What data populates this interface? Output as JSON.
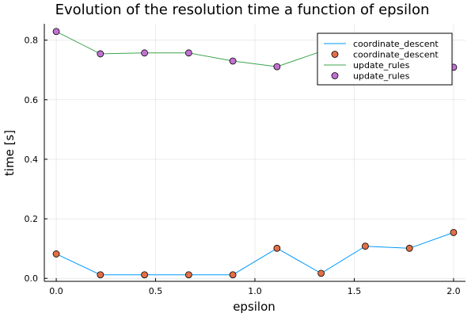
{
  "chart_data": {
    "type": "scatter",
    "title": "Evolution of the resolution time a function of epsilon",
    "xlabel": "epsilon",
    "ylabel": "time [s]",
    "xlim": [
      -0.06,
      2.06
    ],
    "ylim": [
      -0.01,
      0.855
    ],
    "xticks": [
      0.0,
      0.5,
      1.0,
      1.5,
      2.0
    ],
    "xtick_labels": [
      "0.0",
      "0.5",
      "1.0",
      "1.5",
      "2.0"
    ],
    "yticks": [
      0.0,
      0.2,
      0.4,
      0.6,
      0.8
    ],
    "ytick_labels": [
      "0.0",
      "0.2",
      "0.4",
      "0.6",
      "0.8"
    ],
    "grid": true,
    "legend_position": "top-right",
    "x": [
      0.0,
      0.2222,
      0.4444,
      0.6667,
      0.8889,
      1.1111,
      1.3333,
      1.5556,
      1.7778,
      2.0
    ],
    "series": [
      {
        "name": "coordinate_descent",
        "line_color": "#009AFA",
        "marker_color": "#E26F46",
        "values": [
          0.082,
          0.012,
          0.012,
          0.012,
          0.012,
          0.101,
          0.017,
          0.108,
          0.101,
          0.154
        ]
      },
      {
        "name": "update_rules",
        "line_color": "#3EA44E",
        "marker_color": "#C271D2",
        "values": [
          0.829,
          0.754,
          0.757,
          0.757,
          0.73,
          0.711,
          0.762,
          0.748,
          0.728,
          0.709
        ]
      }
    ],
    "legend_entries": [
      {
        "label": "coordinate_descent",
        "kind": "line",
        "color": "#009AFA"
      },
      {
        "label": "coordinate_descent",
        "kind": "marker",
        "color": "#E26F46"
      },
      {
        "label": "update_rules",
        "kind": "line",
        "color": "#3EA44E"
      },
      {
        "label": "update_rules",
        "kind": "marker",
        "color": "#C271D2"
      }
    ]
  }
}
